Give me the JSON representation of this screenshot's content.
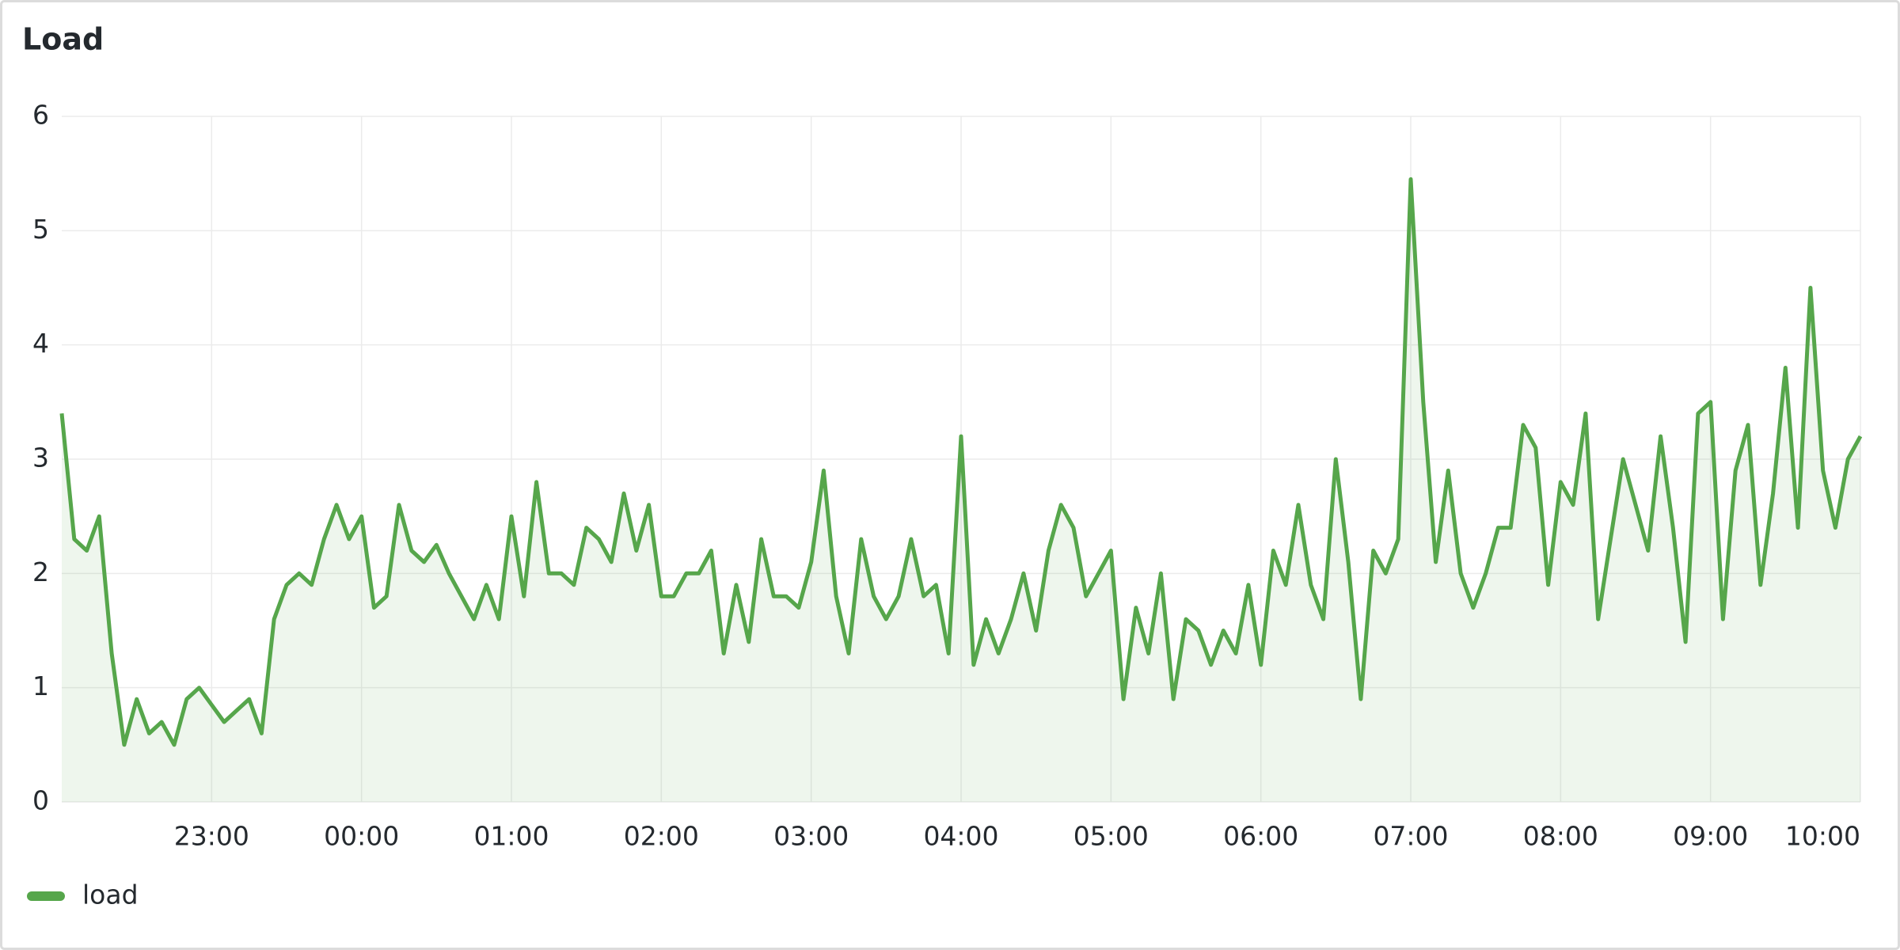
{
  "chart_data": {
    "type": "line",
    "title": "Load",
    "x": [
      "22:00",
      "22:05",
      "22:10",
      "22:15",
      "22:20",
      "22:25",
      "22:30",
      "22:35",
      "22:40",
      "22:45",
      "22:50",
      "22:55",
      "23:00",
      "23:05",
      "23:10",
      "23:15",
      "23:20",
      "23:25",
      "23:30",
      "23:35",
      "23:40",
      "23:45",
      "23:50",
      "23:55",
      "00:00",
      "00:05",
      "00:10",
      "00:15",
      "00:20",
      "00:25",
      "00:30",
      "00:35",
      "00:40",
      "00:45",
      "00:50",
      "00:55",
      "01:00",
      "01:05",
      "01:10",
      "01:15",
      "01:20",
      "01:25",
      "01:30",
      "01:35",
      "01:40",
      "01:45",
      "01:50",
      "01:55",
      "02:00",
      "02:05",
      "02:10",
      "02:15",
      "02:20",
      "02:25",
      "02:30",
      "02:35",
      "02:40",
      "02:45",
      "02:50",
      "02:55",
      "03:00",
      "03:05",
      "03:10",
      "03:15",
      "03:20",
      "03:25",
      "03:30",
      "03:35",
      "03:40",
      "03:45",
      "03:50",
      "03:55",
      "04:00",
      "04:05",
      "04:10",
      "04:15",
      "04:20",
      "04:25",
      "04:30",
      "04:35",
      "04:40",
      "04:45",
      "04:50",
      "04:55",
      "05:00",
      "05:05",
      "05:10",
      "05:15",
      "05:20",
      "05:25",
      "05:30",
      "05:35",
      "05:40",
      "05:45",
      "05:50",
      "05:55",
      "06:00",
      "06:05",
      "06:10",
      "06:15",
      "06:20",
      "06:25",
      "06:30",
      "06:35",
      "06:40",
      "06:45",
      "06:50",
      "06:55",
      "07:00",
      "07:05",
      "07:10",
      "07:15",
      "07:20",
      "07:25",
      "07:30",
      "07:35",
      "07:40",
      "07:45",
      "07:50",
      "07:55",
      "08:00",
      "08:05",
      "08:10",
      "08:15",
      "08:20",
      "08:25",
      "08:30",
      "08:35",
      "08:40",
      "08:45",
      "08:50",
      "08:55",
      "09:00",
      "09:05",
      "09:10",
      "09:15",
      "09:20",
      "09:25",
      "09:30",
      "09:35",
      "09:40",
      "09:45",
      "09:50",
      "09:55",
      "10:00"
    ],
    "series": [
      {
        "name": "load",
        "color": "#56a64b",
        "values": [
          3.4,
          2.3,
          2.2,
          2.5,
          1.3,
          0.5,
          0.9,
          0.6,
          0.7,
          0.5,
          0.9,
          1.0,
          0.85,
          0.7,
          0.8,
          0.9,
          0.6,
          1.6,
          1.9,
          2.0,
          1.9,
          2.3,
          2.6,
          2.3,
          2.5,
          1.7,
          1.8,
          2.6,
          2.2,
          2.1,
          2.25,
          2.0,
          1.8,
          1.6,
          1.9,
          1.6,
          2.5,
          1.8,
          2.8,
          2.0,
          2.0,
          1.9,
          2.4,
          2.3,
          2.1,
          2.7,
          2.2,
          2.6,
          1.8,
          1.8,
          2.0,
          2.0,
          2.2,
          1.3,
          1.9,
          1.4,
          2.3,
          1.8,
          1.8,
          1.7,
          2.1,
          2.9,
          1.8,
          1.3,
          2.3,
          1.8,
          1.6,
          1.8,
          2.3,
          1.8,
          1.9,
          1.3,
          3.2,
          1.2,
          1.6,
          1.3,
          1.6,
          2.0,
          1.5,
          2.2,
          2.6,
          2.4,
          1.8,
          2.0,
          2.2,
          0.9,
          1.7,
          1.3,
          2.0,
          0.9,
          1.6,
          1.5,
          1.2,
          1.5,
          1.3,
          1.9,
          1.2,
          2.2,
          1.9,
          2.6,
          1.9,
          1.6,
          3.0,
          2.1,
          0.9,
          2.2,
          2.0,
          2.3,
          5.45,
          3.5,
          2.1,
          2.9,
          2.0,
          1.7,
          2.0,
          2.4,
          2.4,
          3.3,
          3.1,
          1.9,
          2.8,
          2.6,
          3.4,
          1.6,
          2.3,
          3.0,
          2.6,
          2.2,
          3.2,
          2.4,
          1.4,
          3.4,
          3.5,
          1.6,
          2.9,
          3.3,
          1.9,
          2.7,
          3.8,
          2.4,
          4.5,
          2.9,
          2.4,
          3.0,
          3.2
        ]
      }
    ],
    "xlim": [
      "22:00",
      "10:00"
    ],
    "xticks": [
      "23:00",
      "00:00",
      "01:00",
      "02:00",
      "03:00",
      "04:00",
      "05:00",
      "06:00",
      "07:00",
      "08:00",
      "09:00",
      "10:00"
    ],
    "ylim": [
      0,
      6
    ],
    "yticks": [
      0,
      1,
      2,
      3,
      4,
      5,
      6
    ],
    "grid": true,
    "legend": "bottom-left"
  }
}
